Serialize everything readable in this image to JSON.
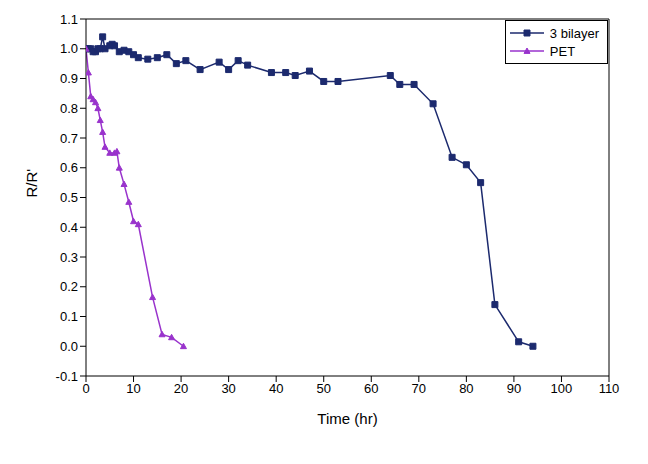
{
  "chart_data": {
    "type": "line",
    "x_label": "Time (hr)",
    "y_label": "R/R'",
    "xlim": [
      0,
      110
    ],
    "xticks": [
      0,
      10,
      20,
      30,
      40,
      50,
      60,
      70,
      80,
      90,
      100,
      110
    ],
    "ylim": [
      -0.1,
      1.1
    ],
    "yticks": [
      {
        "value": -0.1,
        "label": "-0.1"
      },
      {
        "value": 0,
        "label": "0.0"
      },
      {
        "value": 0.1,
        "label": "0.1"
      },
      {
        "value": 0.2,
        "label": "0.2"
      },
      {
        "value": 0.3,
        "label": "0.3"
      },
      {
        "value": 0.4,
        "label": "0.4"
      },
      {
        "value": 0.5,
        "label": "0.5"
      },
      {
        "value": 0.6,
        "label": "0.6"
      },
      {
        "value": 0.7,
        "label": "0.7"
      },
      {
        "value": 0.8,
        "label": "0.8"
      },
      {
        "value": 0.9,
        "label": "0.9"
      },
      {
        "value": 1,
        "label": "1.0"
      },
      {
        "value": 1.1,
        "label": "1.1"
      }
    ],
    "grid": false,
    "legend": "upper right",
    "series": [
      {
        "name": "3 bilayer",
        "color": "#1c2a6e",
        "marker": "square",
        "line_style": "solid",
        "x": [
          0,
          0.5,
          1,
          1.5,
          2,
          2.5,
          3,
          3.5,
          4,
          5,
          5.5,
          6,
          7,
          8,
          9,
          10,
          11,
          13,
          15,
          17,
          19,
          21,
          24,
          28,
          30,
          32,
          34,
          39,
          42,
          44,
          47,
          50,
          53,
          64,
          66,
          69,
          73,
          77,
          80,
          83,
          86,
          91,
          94
        ],
        "values": [
          1.0,
          1.0,
          1.0,
          0.99,
          0.99,
          1.0,
          1.0,
          1.04,
          1.0,
          1.01,
          1.015,
          1.01,
          0.99,
          0.995,
          0.99,
          0.98,
          0.97,
          0.965,
          0.97,
          0.98,
          0.95,
          0.96,
          0.93,
          0.955,
          0.93,
          0.96,
          0.945,
          0.92,
          0.92,
          0.91,
          0.925,
          0.89,
          0.89,
          0.91,
          0.88,
          0.88,
          0.815,
          0.635,
          0.61,
          0.55,
          0.14,
          0.015,
          0.0
        ]
      },
      {
        "name": "PET",
        "color": "#9933cc",
        "marker": "triangle",
        "line_style": "solid",
        "x": [
          0,
          0.5,
          1,
          1.5,
          2,
          2.5,
          3,
          3.5,
          4,
          5,
          6,
          6.5,
          7,
          8,
          9,
          10,
          11,
          14,
          16,
          18,
          20.5
        ],
        "values": [
          1.0,
          0.92,
          0.84,
          0.83,
          0.82,
          0.8,
          0.76,
          0.72,
          0.67,
          0.65,
          0.65,
          0.655,
          0.6,
          0.545,
          0.485,
          0.42,
          0.41,
          0.165,
          0.04,
          0.03,
          0.0
        ]
      }
    ]
  }
}
